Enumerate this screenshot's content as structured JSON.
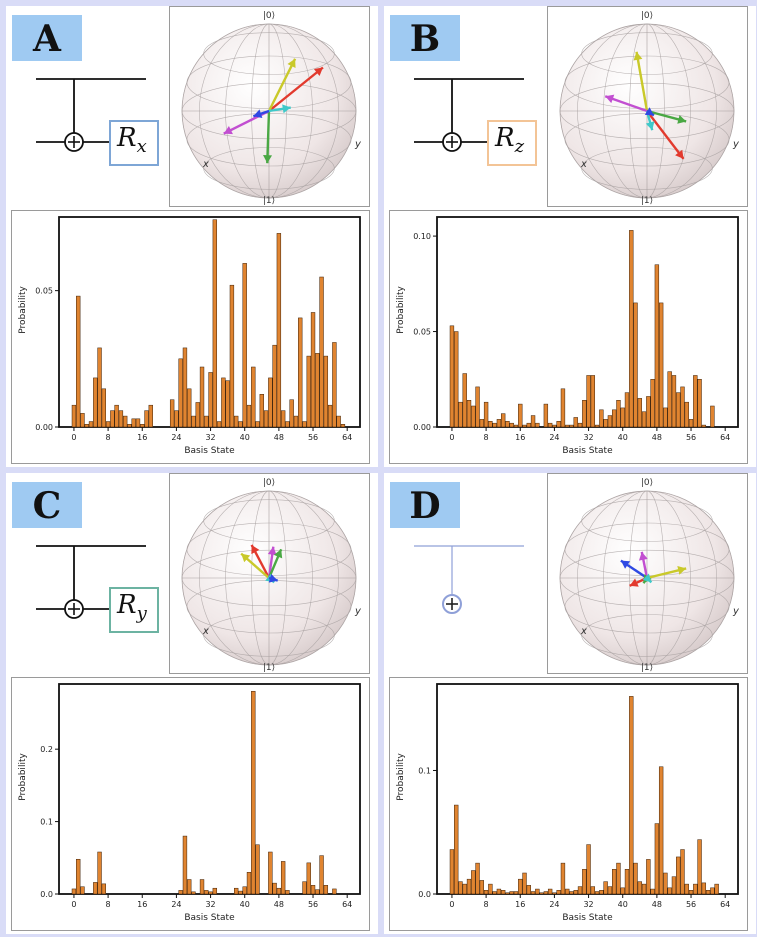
{
  "panels": [
    {
      "letter": "A",
      "gate": {
        "name": "R",
        "sub": "x",
        "border_color": "#7ea6d6",
        "plain_target": false
      },
      "sphere": {
        "top": "|0⟩",
        "bottom": "|1⟩",
        "x_label": "x",
        "y_label": "y",
        "vectors": [
          {
            "color": "#e23a2e",
            "dir": [
              0.62,
              -0.5
            ]
          },
          {
            "color": "#c9c92a",
            "dir": [
              0.3,
              -0.6
            ]
          },
          {
            "color": "#4aa844",
            "dir": [
              -0.02,
              0.6
            ]
          },
          {
            "color": "#c24fd1",
            "dir": [
              -0.52,
              0.26
            ]
          },
          {
            "color": "#3fc9c9",
            "dir": [
              0.25,
              -0.04
            ]
          },
          {
            "color": "#2f49e3",
            "dir": [
              -0.18,
              0.06
            ]
          }
        ]
      },
      "chart": {
        "ylabel": "Probability",
        "xlabel": "Basis State",
        "yticks": [
          0.0,
          0.05
        ],
        "ytick_labels": [
          "0.00",
          "0.05"
        ],
        "ymax": 0.077,
        "xticks": [
          0,
          8,
          16,
          24,
          32,
          40,
          48,
          56,
          64
        ],
        "values": [
          0.008,
          0.048,
          0.005,
          0.001,
          0.002,
          0.018,
          0.029,
          0.014,
          0.002,
          0.006,
          0.008,
          0.006,
          0.004,
          0.001,
          0.003,
          0.003,
          0.001,
          0.006,
          0.008,
          0.0,
          0.0,
          0.0,
          0.0,
          0.01,
          0.006,
          0.025,
          0.029,
          0.014,
          0.004,
          0.009,
          0.022,
          0.004,
          0.02,
          0.076,
          0.002,
          0.018,
          0.017,
          0.052,
          0.004,
          0.002,
          0.06,
          0.008,
          0.022,
          0.002,
          0.012,
          0.006,
          0.018,
          0.03,
          0.071,
          0.006,
          0.002,
          0.01,
          0.004,
          0.04,
          0.002,
          0.026,
          0.042,
          0.027,
          0.055,
          0.026,
          0.008,
          0.031,
          0.004,
          0.001
        ]
      }
    },
    {
      "letter": "B",
      "gate": {
        "name": "R",
        "sub": "z",
        "border_color": "#f3c496",
        "plain_target": false
      },
      "sphere": {
        "top": "|0⟩",
        "bottom": "|1⟩",
        "x_label": "x",
        "y_label": "y",
        "vectors": [
          {
            "color": "#c9c92a",
            "dir": [
              -0.12,
              -0.68
            ]
          },
          {
            "color": "#c24fd1",
            "dir": [
              -0.48,
              -0.17
            ]
          },
          {
            "color": "#4aa844",
            "dir": [
              0.45,
              0.12
            ]
          },
          {
            "color": "#e23a2e",
            "dir": [
              0.42,
              0.55
            ]
          },
          {
            "color": "#3fc9c9",
            "dir": [
              0.06,
              0.22
            ]
          },
          {
            "color": "#2f49e3",
            "dir": [
              0.08,
              0.05
            ]
          }
        ]
      },
      "chart": {
        "ylabel": "Probability",
        "xlabel": "Basis State",
        "yticks": [
          0.0,
          0.05,
          0.1
        ],
        "ytick_labels": [
          "0.00",
          "0.05",
          "0.10"
        ],
        "ymax": 0.11,
        "xticks": [
          0,
          8,
          16,
          24,
          32,
          40,
          48,
          56,
          64
        ],
        "values": [
          0.053,
          0.05,
          0.013,
          0.028,
          0.014,
          0.011,
          0.021,
          0.004,
          0.013,
          0.003,
          0.002,
          0.004,
          0.007,
          0.003,
          0.002,
          0.001,
          0.012,
          0.001,
          0.002,
          0.006,
          0.002,
          0.0,
          0.012,
          0.002,
          0.001,
          0.003,
          0.02,
          0.001,
          0.001,
          0.005,
          0.002,
          0.014,
          0.027,
          0.027,
          0.001,
          0.009,
          0.004,
          0.006,
          0.009,
          0.014,
          0.01,
          0.018,
          0.103,
          0.065,
          0.015,
          0.008,
          0.016,
          0.025,
          0.085,
          0.065,
          0.01,
          0.029,
          0.027,
          0.018,
          0.021,
          0.013,
          0.004,
          0.027,
          0.025,
          0.001,
          0.0,
          0.011,
          0.0,
          0.0
        ]
      }
    },
    {
      "letter": "C",
      "gate": {
        "name": "R",
        "sub": "y",
        "border_color": "#6cb3a2",
        "plain_target": false
      },
      "sphere": {
        "top": "|0⟩",
        "bottom": "|1⟩",
        "x_label": "x",
        "y_label": "y",
        "vectors": [
          {
            "color": "#e23a2e",
            "dir": [
              -0.2,
              -0.38
            ]
          },
          {
            "color": "#c9c92a",
            "dir": [
              -0.32,
              -0.28
            ]
          },
          {
            "color": "#c24fd1",
            "dir": [
              0.05,
              -0.36
            ]
          },
          {
            "color": "#4aa844",
            "dir": [
              0.14,
              -0.33
            ]
          },
          {
            "color": "#3fc9c9",
            "dir": [
              0.06,
              0.05
            ]
          },
          {
            "color": "#2f49e3",
            "dir": [
              0.1,
              0.03
            ]
          }
        ]
      },
      "chart": {
        "ylabel": "Probability",
        "xlabel": "Basis State",
        "yticks": [
          0.0,
          0.1,
          0.2
        ],
        "ytick_labels": [
          "0.0",
          "0.1",
          "0.2"
        ],
        "ymax": 0.29,
        "xticks": [
          0,
          8,
          16,
          24,
          32,
          40,
          48,
          56,
          64
        ],
        "values": [
          0.007,
          0.048,
          0.01,
          0.0,
          0.0,
          0.016,
          0.058,
          0.014,
          0.0,
          0.0,
          0.0,
          0.0,
          0.0,
          0.0,
          0.0,
          0.0,
          0.0,
          0.0,
          0.0,
          0.0,
          0.0,
          0.0,
          0.0,
          0.0,
          0.0,
          0.005,
          0.08,
          0.02,
          0.003,
          0.0,
          0.02,
          0.005,
          0.003,
          0.008,
          0.0,
          0.0,
          0.0,
          0.0,
          0.008,
          0.004,
          0.01,
          0.03,
          0.28,
          0.068,
          0.0,
          0.0,
          0.058,
          0.015,
          0.008,
          0.045,
          0.005,
          0.0,
          0.0,
          0.0,
          0.017,
          0.043,
          0.012,
          0.006,
          0.053,
          0.012,
          0.0,
          0.007,
          0.0,
          0.0
        ]
      }
    },
    {
      "letter": "D",
      "gate": {
        "name": "",
        "sub": "",
        "border_color": "#a9b7e5",
        "plain_target": true
      },
      "sphere": {
        "top": "|0⟩",
        "bottom": "|1⟩",
        "x_label": "x",
        "y_label": "y",
        "vectors": [
          {
            "color": "#2f49e3",
            "dir": [
              -0.3,
              -0.2
            ]
          },
          {
            "color": "#c24fd1",
            "dir": [
              -0.06,
              -0.3
            ]
          },
          {
            "color": "#c9c92a",
            "dir": [
              0.45,
              -0.11
            ]
          },
          {
            "color": "#e23a2e",
            "dir": [
              -0.2,
              0.09
            ]
          },
          {
            "color": "#4aa844",
            "dir": [
              -0.04,
              0.06
            ]
          },
          {
            "color": "#3fc9c9",
            "dir": [
              0.05,
              0.05
            ]
          }
        ]
      },
      "chart": {
        "ylabel": "Probability",
        "xlabel": "Basis State",
        "yticks": [
          0.0,
          0.1
        ],
        "ytick_labels": [
          "0.0",
          "0.1"
        ],
        "ymax": 0.17,
        "xticks": [
          0,
          8,
          16,
          24,
          32,
          40,
          48,
          56,
          64
        ],
        "values": [
          0.036,
          0.072,
          0.01,
          0.008,
          0.012,
          0.019,
          0.025,
          0.011,
          0.003,
          0.008,
          0.002,
          0.004,
          0.003,
          0.001,
          0.002,
          0.002,
          0.012,
          0.017,
          0.007,
          0.002,
          0.004,
          0.001,
          0.002,
          0.004,
          0.001,
          0.003,
          0.025,
          0.004,
          0.002,
          0.003,
          0.006,
          0.02,
          0.04,
          0.006,
          0.002,
          0.003,
          0.01,
          0.006,
          0.02,
          0.025,
          0.005,
          0.02,
          0.16,
          0.025,
          0.01,
          0.008,
          0.028,
          0.004,
          0.057,
          0.103,
          0.017,
          0.005,
          0.014,
          0.03,
          0.036,
          0.008,
          0.003,
          0.008,
          0.044,
          0.009,
          0.003,
          0.005,
          0.008,
          0.0
        ]
      }
    }
  ]
}
